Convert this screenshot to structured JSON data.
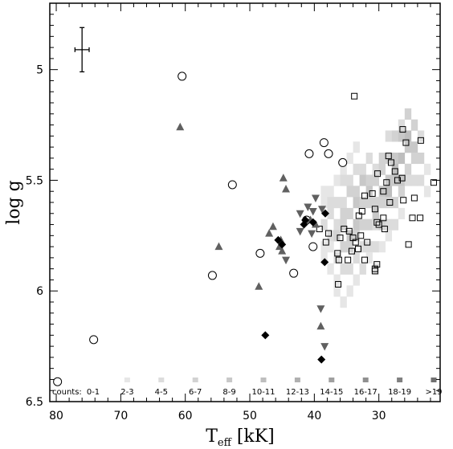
{
  "chart_data": {
    "type": "scatter",
    "title": "",
    "xlabel": "T",
    "xlabel_sub": "eff",
    "xlabel_unit": "[kK]",
    "ylabel": "log g",
    "xlim": [
      81,
      20.5
    ],
    "ylim": [
      6.5,
      4.7
    ],
    "x_inverted": true,
    "y_inverted": true,
    "x_ticks": [
      80,
      70,
      60,
      50,
      40,
      30
    ],
    "x_tick_labels": [
      "80",
      "70",
      "60",
      "50",
      "40",
      "30"
    ],
    "y_ticks": [
      5,
      5.5,
      6,
      6.5
    ],
    "y_tick_labels": [
      "5",
      "5.5",
      "6",
      "6.5"
    ],
    "grid": false,
    "error_bar": {
      "x": 76,
      "y": 4.91,
      "xerr": 1.1,
      "yerr": 0.1
    },
    "counts_legend": {
      "title": "counts:",
      "bins": [
        "0-1",
        "2-3",
        "4-5",
        "6-7",
        "8-9",
        "10-11",
        "12-13",
        "14-15",
        "16-17",
        "18-19",
        ">19"
      ],
      "colors": [
        "#ffffff",
        "#e6e6e6",
        "#dcdcdc",
        "#d2d2d2",
        "#c8c8c8",
        "#bebebe",
        "#b0b0b0",
        "#a0a0a0",
        "#909090",
        "#808080",
        "#707070"
      ]
    },
    "density_cells": [
      [
        38.5,
        5.55,
        1
      ],
      [
        38.5,
        5.6,
        1
      ],
      [
        38.5,
        5.7,
        2
      ],
      [
        38.5,
        5.8,
        1
      ],
      [
        38.5,
        5.85,
        1
      ],
      [
        37.5,
        5.55,
        1
      ],
      [
        37.5,
        5.6,
        2
      ],
      [
        37.5,
        5.65,
        2
      ],
      [
        37.5,
        5.75,
        2
      ],
      [
        37.5,
        5.8,
        1
      ],
      [
        37.5,
        5.9,
        1
      ],
      [
        36.5,
        5.5,
        1
      ],
      [
        36.5,
        5.6,
        2
      ],
      [
        36.5,
        5.7,
        2
      ],
      [
        36.5,
        5.75,
        3
      ],
      [
        36.5,
        5.85,
        2
      ],
      [
        36.5,
        5.95,
        1
      ],
      [
        36.5,
        6.0,
        1
      ],
      [
        35.5,
        5.45,
        1
      ],
      [
        35.5,
        5.5,
        2
      ],
      [
        35.5,
        5.6,
        2
      ],
      [
        35.5,
        5.65,
        3
      ],
      [
        35.5,
        5.7,
        3
      ],
      [
        35.5,
        5.8,
        3
      ],
      [
        35.5,
        5.9,
        2
      ],
      [
        35.5,
        6.05,
        1
      ],
      [
        34.5,
        5.4,
        1
      ],
      [
        34.5,
        5.5,
        2
      ],
      [
        34.5,
        5.55,
        3
      ],
      [
        34.5,
        5.65,
        3
      ],
      [
        34.5,
        5.75,
        4
      ],
      [
        34.5,
        5.8,
        3
      ],
      [
        34.5,
        5.9,
        2
      ],
      [
        34.5,
        6.0,
        1
      ],
      [
        33.5,
        5.35,
        1
      ],
      [
        33.5,
        5.45,
        2
      ],
      [
        33.5,
        5.55,
        3
      ],
      [
        33.5,
        5.6,
        4
      ],
      [
        33.5,
        5.7,
        4
      ],
      [
        33.5,
        5.75,
        3
      ],
      [
        33.5,
        5.85,
        2
      ],
      [
        33.5,
        5.95,
        1
      ],
      [
        32.5,
        5.45,
        2
      ],
      [
        32.5,
        5.5,
        4
      ],
      [
        32.5,
        5.6,
        3
      ],
      [
        32.5,
        5.7,
        3
      ],
      [
        32.5,
        5.8,
        2
      ],
      [
        32.5,
        5.9,
        2
      ],
      [
        31.5,
        5.4,
        2
      ],
      [
        31.5,
        5.5,
        3
      ],
      [
        31.5,
        5.55,
        4
      ],
      [
        31.5,
        5.6,
        3
      ],
      [
        31.5,
        5.7,
        3
      ],
      [
        31.5,
        5.8,
        2
      ],
      [
        31.5,
        5.85,
        1
      ],
      [
        30.5,
        5.45,
        2
      ],
      [
        30.5,
        5.5,
        3
      ],
      [
        30.5,
        5.6,
        3
      ],
      [
        30.5,
        5.65,
        4
      ],
      [
        30.5,
        5.7,
        2
      ],
      [
        30.5,
        5.8,
        2
      ],
      [
        30.5,
        5.9,
        1
      ],
      [
        29.5,
        5.4,
        3
      ],
      [
        29.5,
        5.45,
        3
      ],
      [
        29.5,
        5.55,
        4
      ],
      [
        29.5,
        5.6,
        3
      ],
      [
        29.5,
        5.7,
        3
      ],
      [
        29.5,
        5.8,
        1
      ],
      [
        28.5,
        5.3,
        2
      ],
      [
        28.5,
        5.4,
        3
      ],
      [
        28.5,
        5.5,
        4
      ],
      [
        28.5,
        5.55,
        5
      ],
      [
        28.5,
        5.6,
        3
      ],
      [
        28.5,
        5.7,
        2
      ],
      [
        28.5,
        5.75,
        1
      ],
      [
        27.5,
        5.3,
        3
      ],
      [
        27.5,
        5.4,
        4
      ],
      [
        27.5,
        5.45,
        5
      ],
      [
        27.5,
        5.5,
        4
      ],
      [
        27.5,
        5.6,
        3
      ],
      [
        27.5,
        5.7,
        2
      ],
      [
        26.5,
        5.25,
        2
      ],
      [
        26.5,
        5.3,
        4
      ],
      [
        26.5,
        5.4,
        5
      ],
      [
        26.5,
        5.5,
        4
      ],
      [
        26.5,
        5.55,
        3
      ],
      [
        26.5,
        5.65,
        1
      ],
      [
        25.5,
        5.2,
        3
      ],
      [
        25.5,
        5.3,
        5
      ],
      [
        25.5,
        5.35,
        4
      ],
      [
        25.5,
        5.45,
        3
      ],
      [
        25.5,
        5.5,
        2
      ],
      [
        24.5,
        5.25,
        3
      ],
      [
        24.5,
        5.35,
        4
      ],
      [
        24.5,
        5.4,
        3
      ],
      [
        24.5,
        5.5,
        2
      ],
      [
        23.5,
        5.3,
        2
      ],
      [
        23.5,
        5.4,
        3
      ],
      [
        23.5,
        5.5,
        2
      ],
      [
        22.5,
        5.45,
        1
      ],
      [
        22.5,
        5.55,
        1
      ]
    ],
    "series": [
      {
        "marker": "open-square",
        "color": "#000000",
        "points": [
          [
            33.8,
            5.12
          ],
          [
            26.3,
            5.27
          ],
          [
            25.8,
            5.33
          ],
          [
            23.5,
            5.32
          ],
          [
            28.5,
            5.39
          ],
          [
            28.1,
            5.42
          ],
          [
            30.2,
            5.47
          ],
          [
            27.5,
            5.46
          ],
          [
            27.1,
            5.5
          ],
          [
            28.8,
            5.51
          ],
          [
            26.4,
            5.49
          ],
          [
            21.5,
            5.51
          ],
          [
            29.3,
            5.55
          ],
          [
            31.0,
            5.56
          ],
          [
            32.2,
            5.57
          ],
          [
            26.2,
            5.59
          ],
          [
            28.3,
            5.6
          ],
          [
            24.5,
            5.58
          ],
          [
            30.6,
            5.63
          ],
          [
            32.6,
            5.64
          ],
          [
            33.1,
            5.66
          ],
          [
            29.3,
            5.67
          ],
          [
            24.8,
            5.67
          ],
          [
            23.6,
            5.67
          ],
          [
            30.3,
            5.69
          ],
          [
            30.0,
            5.7
          ],
          [
            34.6,
            5.73
          ],
          [
            35.4,
            5.72
          ],
          [
            29.1,
            5.72
          ],
          [
            36.0,
            5.76
          ],
          [
            34.0,
            5.76
          ],
          [
            32.8,
            5.75
          ],
          [
            33.6,
            5.78
          ],
          [
            31.8,
            5.78
          ],
          [
            33.2,
            5.81
          ],
          [
            34.2,
            5.82
          ],
          [
            36.4,
            5.83
          ],
          [
            36.2,
            5.86
          ],
          [
            34.8,
            5.86
          ],
          [
            30.6,
            5.9
          ],
          [
            30.3,
            5.88
          ],
          [
            25.4,
            5.79
          ],
          [
            32.2,
            5.86
          ],
          [
            36.3,
            5.97
          ],
          [
            30.6,
            5.91
          ],
          [
            39.2,
            5.72
          ],
          [
            38.2,
            5.78
          ],
          [
            37.8,
            5.74
          ]
        ]
      },
      {
        "marker": "open-circle",
        "color": "#000000",
        "points": [
          [
            60.5,
            5.03
          ],
          [
            38.5,
            5.33
          ],
          [
            40.8,
            5.38
          ],
          [
            37.8,
            5.38
          ],
          [
            35.6,
            5.42
          ],
          [
            52.7,
            5.52
          ],
          [
            41.2,
            5.68
          ],
          [
            40.2,
            5.8
          ],
          [
            48.4,
            5.83
          ],
          [
            43.2,
            5.92
          ],
          [
            55.8,
            5.93
          ],
          [
            74.2,
            6.22
          ],
          [
            79.8,
            6.41
          ]
        ]
      },
      {
        "marker": "filled-triangle-up",
        "color": "#606060",
        "points": [
          [
            60.8,
            5.26
          ],
          [
            44.8,
            5.49
          ],
          [
            44.4,
            5.54
          ],
          [
            54.8,
            5.8
          ],
          [
            47.0,
            5.74
          ],
          [
            46.4,
            5.71
          ],
          [
            45.2,
            5.77
          ],
          [
            45.0,
            5.82
          ],
          [
            45.4,
            5.8
          ],
          [
            48.6,
            5.98
          ],
          [
            40.6,
            5.68
          ],
          [
            39.8,
            5.7
          ],
          [
            39.0,
            6.16
          ]
        ]
      },
      {
        "marker": "filled-triangle-down",
        "color": "#606060",
        "points": [
          [
            39.8,
            5.58
          ],
          [
            41.0,
            5.62
          ],
          [
            40.2,
            5.64
          ],
          [
            42.2,
            5.65
          ],
          [
            42.2,
            5.73
          ],
          [
            40.4,
            5.74
          ],
          [
            44.4,
            5.86
          ],
          [
            38.8,
            5.63
          ],
          [
            39.0,
            6.08
          ],
          [
            38.4,
            6.25
          ]
        ]
      },
      {
        "marker": "filled-diamond",
        "color": "#000000",
        "points": [
          [
            41.4,
            5.68
          ],
          [
            40.2,
            5.69
          ],
          [
            41.6,
            5.7
          ],
          [
            38.3,
            5.65
          ],
          [
            38.4,
            5.87
          ],
          [
            45.6,
            5.77
          ],
          [
            45.0,
            5.79
          ],
          [
            47.6,
            6.2
          ],
          [
            38.9,
            6.31
          ]
        ]
      }
    ]
  }
}
